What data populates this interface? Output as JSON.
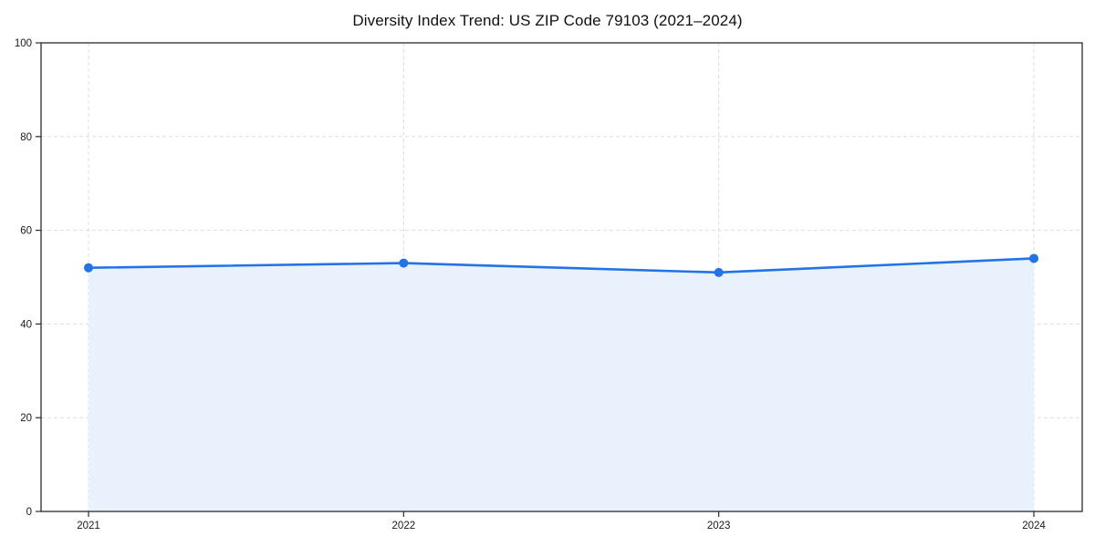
{
  "chart_data": {
    "type": "area",
    "title": "Diversity Index Trend: US ZIP Code 79103 (2021–2024)",
    "x": [
      "2021",
      "2022",
      "2023",
      "2024"
    ],
    "values": [
      52,
      53,
      51,
      54
    ],
    "xlabel": "",
    "ylabel": "",
    "ylim": [
      0,
      100
    ],
    "yticks": [
      0,
      20,
      40,
      60,
      80,
      100
    ],
    "grid": true,
    "grid_style": "dashed",
    "legend_position": "none",
    "colors": {
      "line": "#2273e6",
      "marker": "#2273e6",
      "fill": "#e9f1fc",
      "grid": "#dddddd",
      "spine": "#2b2b2b",
      "tick": "#2b2b2b",
      "tick_label": "#1a1a1a",
      "title": "#111111",
      "background": "#ffffff"
    }
  }
}
